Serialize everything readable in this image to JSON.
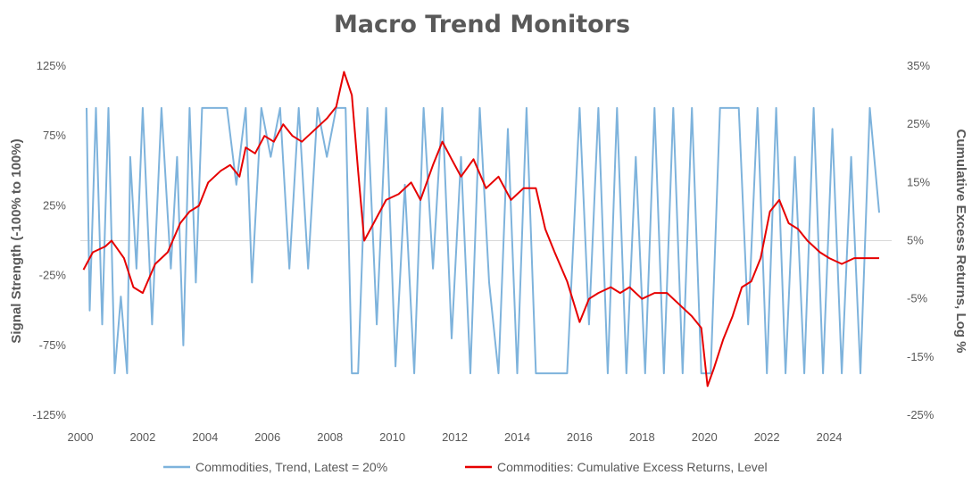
{
  "chart_data": {
    "type": "line",
    "title": "Macro Trend Monitors",
    "ylabel_left": "Signal Strength (-100% to 100%)",
    "ylabel_right": "Cumulative Excess Returns, Log %",
    "ylim_left": [
      -125,
      125
    ],
    "ylim_right": [
      -25,
      35
    ],
    "xlim": [
      2000,
      2026
    ],
    "x_ticks": [
      "2000",
      "2002",
      "2004",
      "2006",
      "2008",
      "2010",
      "2012",
      "2014",
      "2016",
      "2018",
      "2020",
      "2022",
      "2024"
    ],
    "left_ticks": [
      "125%",
      "75%",
      "25%",
      "-25%",
      "-75%",
      "-125%"
    ],
    "right_ticks": [
      "35%",
      "25%",
      "15%",
      "5%",
      "-5%",
      "-15%",
      "-25%"
    ],
    "legend_position": "bottom",
    "series": [
      {
        "name": "Commodities, Trend, Latest = 20%",
        "color": "#7EB3DC",
        "axis": "left",
        "note": "oscillating signal between -100% and 100%",
        "x": [
          2000.2,
          2000.3,
          2000.5,
          2000.7,
          2000.9,
          2001.1,
          2001.3,
          2001.5,
          2001.6,
          2001.8,
          2002.0,
          2002.3,
          2002.6,
          2002.9,
          2003.1,
          2003.3,
          2003.5,
          2003.7,
          2003.9,
          2004.1,
          2004.4,
          2004.7,
          2005.0,
          2005.3,
          2005.5,
          2005.8,
          2006.1,
          2006.4,
          2006.7,
          2007.0,
          2007.3,
          2007.6,
          2007.9,
          2008.2,
          2008.5,
          2008.7,
          2008.9,
          2009.2,
          2009.5,
          2009.8,
          2010.1,
          2010.4,
          2010.7,
          2011.0,
          2011.3,
          2011.6,
          2011.9,
          2012.2,
          2012.5,
          2012.8,
          2013.1,
          2013.4,
          2013.7,
          2014.0,
          2014.3,
          2014.6,
          2014.9,
          2015.2,
          2015.6,
          2016.0,
          2016.3,
          2016.6,
          2016.9,
          2017.2,
          2017.5,
          2017.8,
          2018.1,
          2018.4,
          2018.7,
          2019.0,
          2019.3,
          2019.6,
          2019.9,
          2020.2,
          2020.5,
          2020.8,
          2021.1,
          2021.4,
          2021.7,
          2022.0,
          2022.3,
          2022.6,
          2022.9,
          2023.2,
          2023.5,
          2023.8,
          2024.1,
          2024.4,
          2024.7,
          2025.0,
          2025.3,
          2025.6
        ],
        "values": [
          95,
          -50,
          95,
          -60,
          95,
          -95,
          -40,
          -95,
          60,
          -20,
          95,
          -60,
          95,
          -20,
          60,
          -75,
          95,
          -30,
          95,
          95,
          95,
          95,
          40,
          95,
          -30,
          95,
          60,
          95,
          -20,
          95,
          -20,
          95,
          60,
          95,
          95,
          -95,
          -95,
          95,
          -60,
          95,
          -90,
          40,
          -95,
          95,
          -20,
          95,
          -70,
          60,
          -95,
          95,
          -30,
          -95,
          80,
          -95,
          95,
          -95,
          -95,
          -95,
          -95,
          95,
          -60,
          95,
          -95,
          95,
          -95,
          60,
          -95,
          95,
          -95,
          95,
          -95,
          95,
          -95,
          -95,
          95,
          95,
          95,
          -60,
          95,
          -95,
          95,
          -95,
          60,
          -95,
          95,
          -95,
          80,
          -95,
          60,
          -95,
          95,
          20
        ]
      },
      {
        "name": "Commodities: Cumulative Excess Returns, Level",
        "color": "#E60000",
        "axis": "right",
        "x": [
          2000.1,
          2000.4,
          2000.8,
          2001.0,
          2001.4,
          2001.7,
          2002.0,
          2002.4,
          2002.8,
          2003.2,
          2003.5,
          2003.8,
          2004.1,
          2004.5,
          2004.8,
          2005.1,
          2005.3,
          2005.6,
          2005.9,
          2006.2,
          2006.5,
          2006.8,
          2007.1,
          2007.5,
          2007.9,
          2008.2,
          2008.45,
          2008.7,
          2008.9,
          2009.1,
          2009.4,
          2009.8,
          2010.2,
          2010.6,
          2010.9,
          2011.3,
          2011.6,
          2011.9,
          2012.2,
          2012.6,
          2013.0,
          2013.4,
          2013.8,
          2014.2,
          2014.6,
          2014.9,
          2015.2,
          2015.6,
          2016.0,
          2016.3,
          2016.6,
          2017.0,
          2017.3,
          2017.6,
          2018.0,
          2018.4,
          2018.8,
          2019.2,
          2019.6,
          2019.9,
          2020.1,
          2020.3,
          2020.6,
          2020.9,
          2021.2,
          2021.5,
          2021.8,
          2022.1,
          2022.4,
          2022.7,
          2023.0,
          2023.3,
          2023.7,
          2024.0,
          2024.4,
          2024.8,
          2025.2,
          2025.6
        ],
        "values": [
          0,
          3,
          4,
          5,
          2,
          -3,
          -4,
          1,
          3,
          8,
          10,
          11,
          15,
          17,
          18,
          16,
          21,
          20,
          23,
          22,
          25,
          23,
          22,
          24,
          26,
          28,
          34,
          30,
          17,
          5,
          8,
          12,
          13,
          15,
          12,
          18,
          22,
          19,
          16,
          19,
          14,
          16,
          12,
          14,
          14,
          7,
          3,
          -2,
          -9,
          -5,
          -4,
          -3,
          -4,
          -3,
          -5,
          -4,
          -4,
          -6,
          -8,
          -10,
          -20,
          -17,
          -12,
          -8,
          -3,
          -2,
          2,
          10,
          12,
          8,
          7,
          5,
          3,
          2,
          1,
          2,
          2,
          2
        ]
      }
    ]
  }
}
